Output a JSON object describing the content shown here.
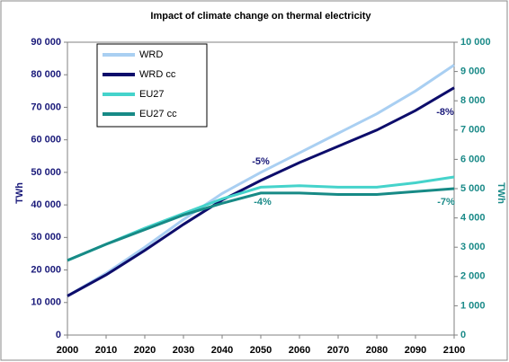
{
  "chart_data": {
    "type": "line",
    "title": "Impact of climate change on thermal electricity",
    "y_label": "TWh",
    "y2_label": "TWh",
    "x": [
      2000,
      2010,
      2020,
      2030,
      2040,
      2050,
      2060,
      2070,
      2080,
      2090,
      2100
    ],
    "series": [
      {
        "name": "WRD",
        "color": "#a9cff2",
        "values": [
          12000,
          19000,
          27000,
          35500,
          43500,
          50000,
          56000,
          62000,
          68000,
          75000,
          83000
        ]
      },
      {
        "name": "WRD cc",
        "color": "#0d0d6b",
        "values": [
          12000,
          18500,
          26000,
          34000,
          41500,
          47500,
          53000,
          58000,
          63000,
          69000,
          76000
        ]
      },
      {
        "name": "EU27",
        "color": "#45d3cb",
        "axis": "y2",
        "values": [
          2550,
          3100,
          3650,
          4150,
          4650,
          5050,
          5100,
          5050,
          5050,
          5200,
          5400
        ]
      },
      {
        "name": "EU27 cc",
        "color": "#178a86",
        "axis": "y2",
        "values": [
          2550,
          3100,
          3600,
          4100,
          4500,
          4850,
          4850,
          4800,
          4800,
          4900,
          5000
        ]
      }
    ],
    "annotations": [
      "-5%",
      "-8%",
      "-4%",
      "-7%"
    ],
    "xlim": [
      2000,
      2100
    ],
    "xticks": [
      2000,
      2010,
      2020,
      2030,
      2040,
      2050,
      2060,
      2070,
      2080,
      2090,
      2100
    ],
    "ylim": [
      0,
      90000
    ],
    "yticks": [
      0,
      {
        "value": 10000,
        "label": "10 000"
      },
      {
        "value": 20000,
        "label": "20 000"
      },
      {
        "value": 30000,
        "label": "30 000"
      },
      {
        "value": 40000,
        "label": "40 000"
      },
      {
        "value": 50000,
        "label": "50 000"
      },
      {
        "value": 60000,
        "label": "60 000"
      },
      {
        "value": 70000,
        "label": "70 000"
      },
      {
        "value": 80000,
        "label": "80 000"
      },
      {
        "value": 90000,
        "label": "90 000"
      }
    ],
    "y2lim": [
      0,
      10000
    ],
    "y2ticks": [
      0,
      {
        "value": 1000,
        "label": "1 000"
      },
      {
        "value": 2000,
        "label": "2 000"
      },
      {
        "value": 3000,
        "label": "3 000"
      },
      {
        "value": 4000,
        "label": "4 000"
      },
      {
        "value": 5000,
        "label": "5 000"
      },
      {
        "value": 6000,
        "label": "6 000"
      },
      {
        "value": 7000,
        "label": "7 000"
      },
      {
        "value": 8000,
        "label": "8 000"
      },
      {
        "value": 9000,
        "label": "9 000"
      },
      {
        "value": 10000,
        "label": "10 000"
      }
    ],
    "grid": false
  }
}
